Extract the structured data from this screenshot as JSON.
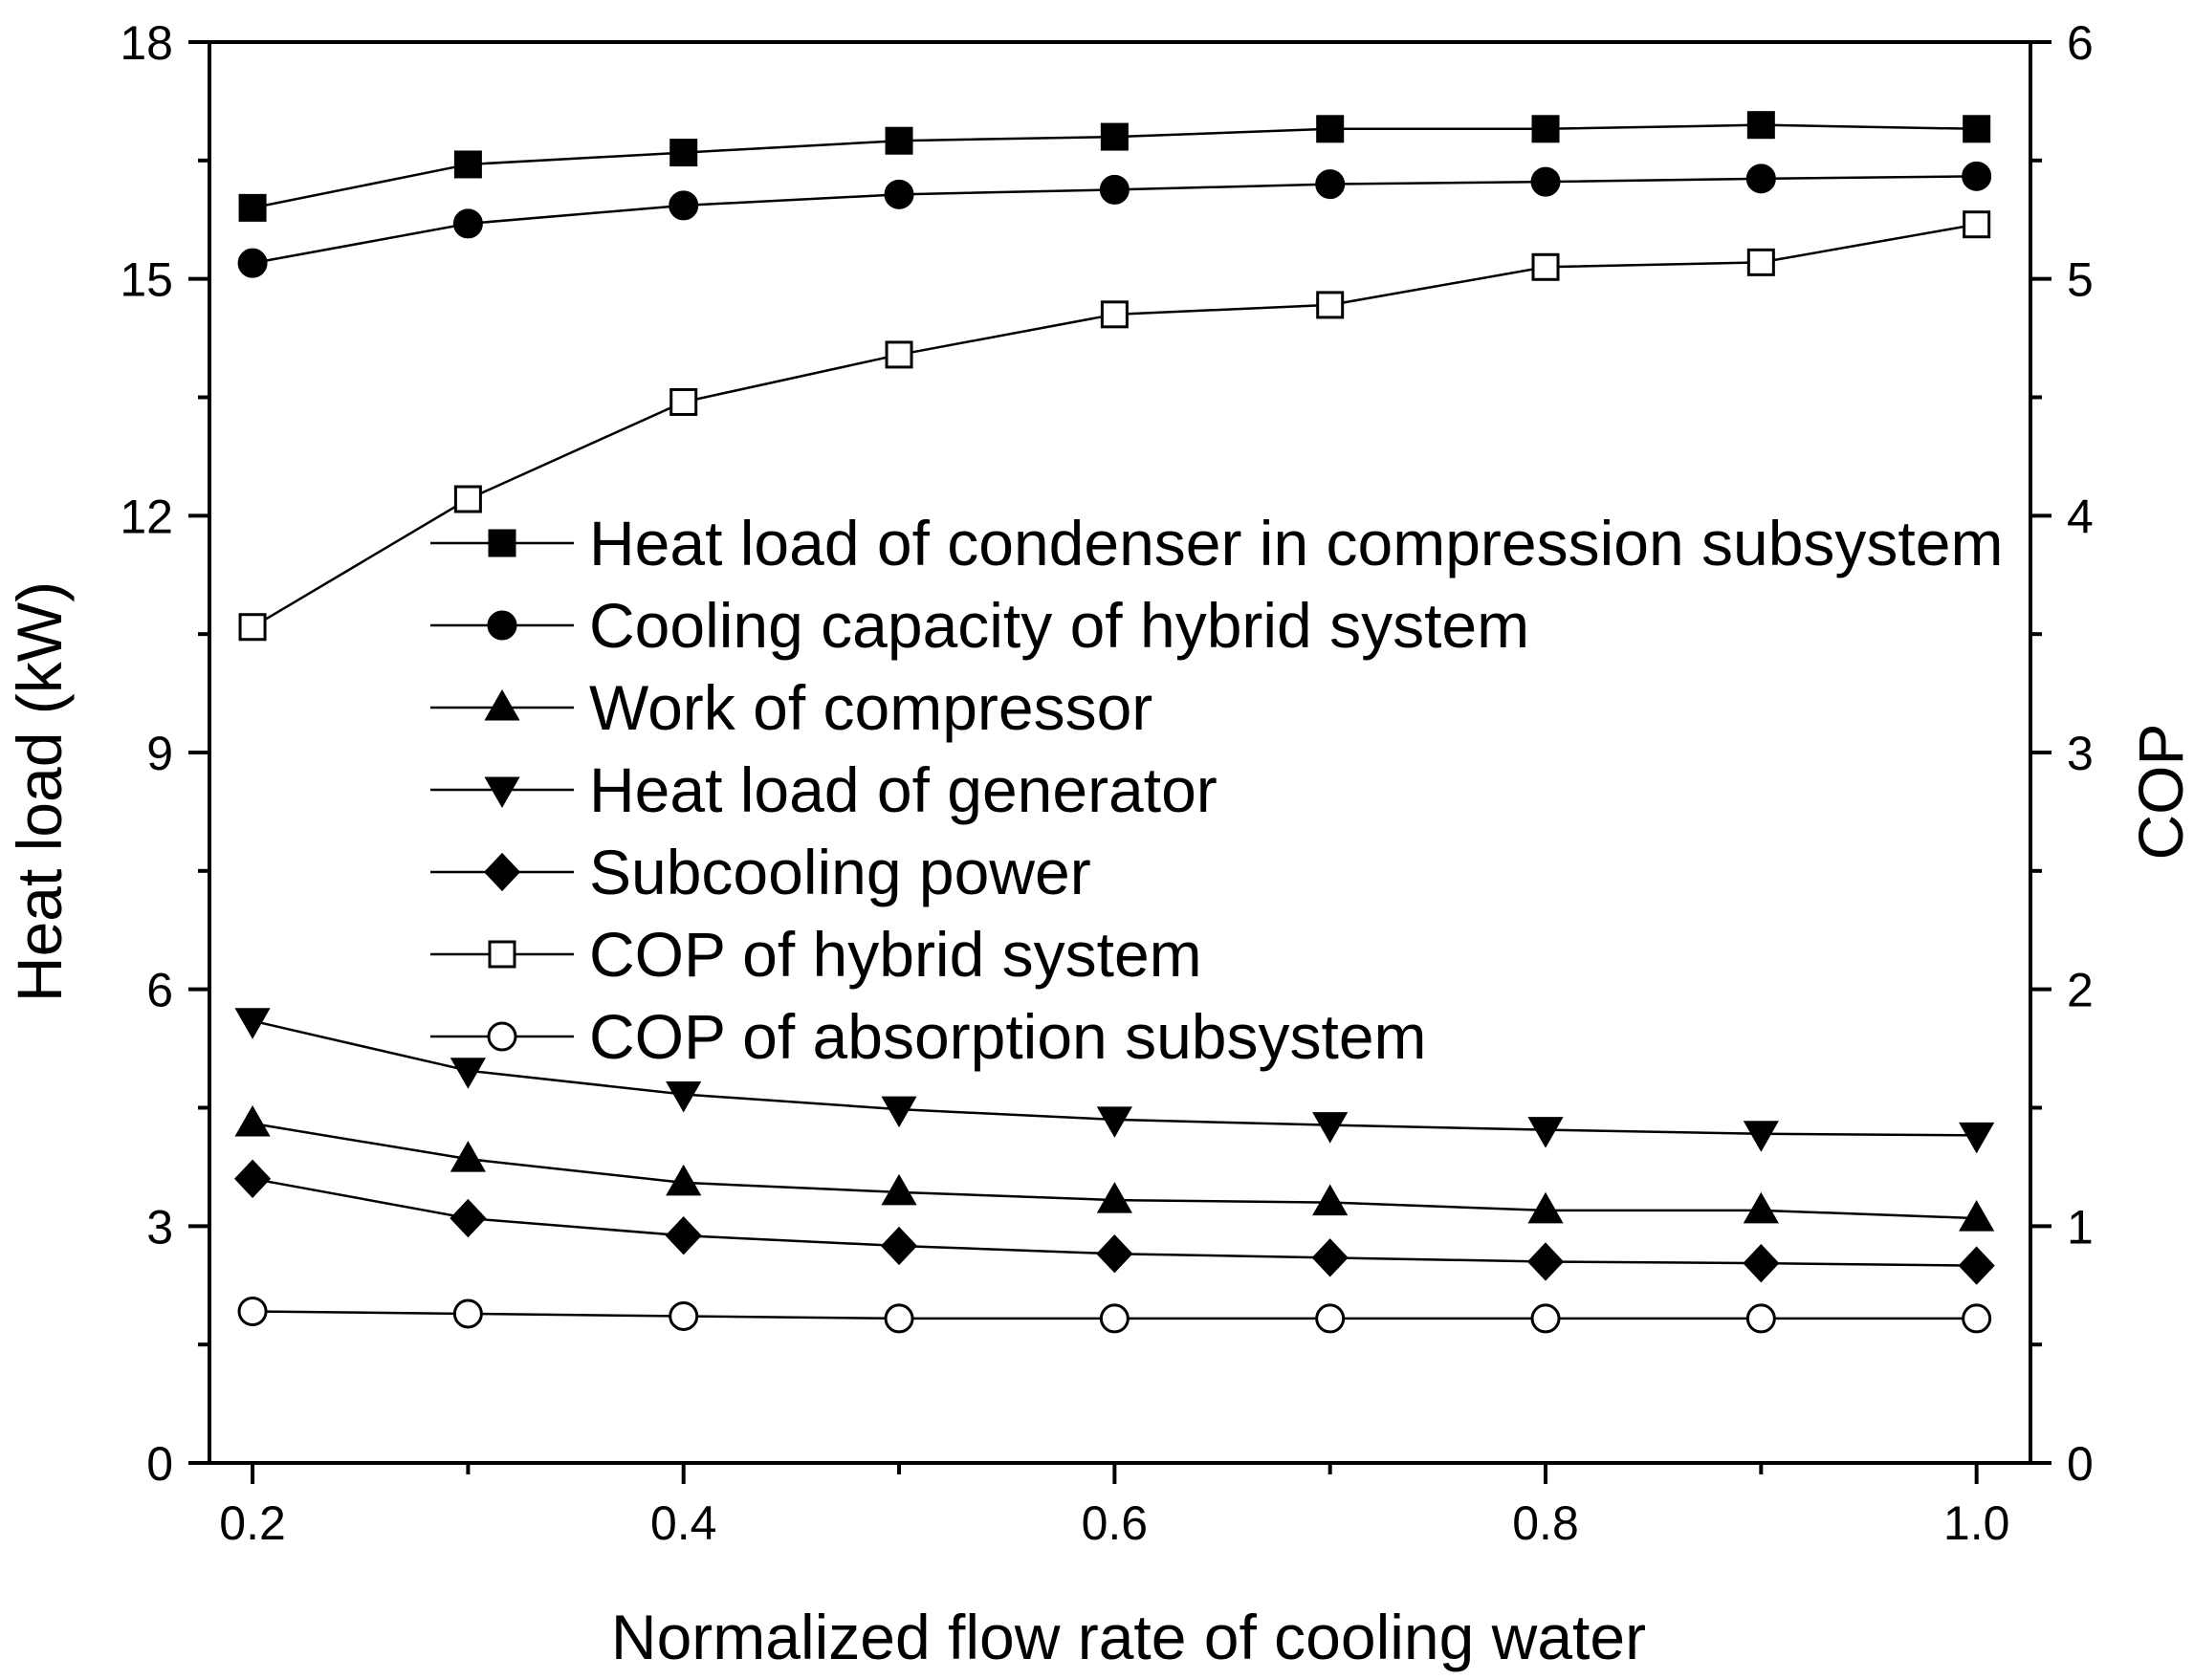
{
  "chart_data": {
    "type": "line",
    "title": "",
    "xlabel": "Normalized flow rate of cooling water",
    "ylabel_left": "Heat load (kW)",
    "ylabel_right": "COP",
    "xlim": [
      0.18,
      1.025
    ],
    "ylim_left": [
      0,
      18
    ],
    "ylim_right": [
      0,
      6
    ],
    "x": [
      0.2,
      0.3,
      0.4,
      0.5,
      0.6,
      0.7,
      0.8,
      0.9,
      1.0
    ],
    "x_ticks": [
      "0.2",
      "0.4",
      "0.6",
      "0.8",
      "1.0"
    ],
    "y_left_ticks": [
      "0",
      "3",
      "6",
      "9",
      "12",
      "15",
      "18"
    ],
    "y_right_ticks": [
      "0",
      "1",
      "2",
      "3",
      "4",
      "5",
      "6"
    ],
    "legend_position": "center",
    "series": [
      {
        "name": "Heat load of condenser in compression subsystem",
        "axis": "left",
        "marker": "square-filled",
        "values": [
          15.9,
          16.45,
          16.6,
          16.75,
          16.8,
          16.9,
          16.9,
          16.95,
          16.9
        ]
      },
      {
        "name": "Cooling capacity of hybrid system",
        "axis": "left",
        "marker": "circle-filled",
        "values": [
          15.2,
          15.7,
          15.93,
          16.07,
          16.13,
          16.2,
          16.23,
          16.27,
          16.3
        ]
      },
      {
        "name": "Work of compressor",
        "axis": "left",
        "marker": "triangle-up-filled",
        "values": [
          4.3,
          3.85,
          3.55,
          3.43,
          3.33,
          3.3,
          3.2,
          3.2,
          3.1
        ]
      },
      {
        "name": "Heat load of generator",
        "axis": "left",
        "marker": "triangle-down-filled",
        "values": [
          5.6,
          4.97,
          4.67,
          4.48,
          4.35,
          4.28,
          4.22,
          4.17,
          4.15
        ]
      },
      {
        "name": "Subcooling power",
        "axis": "left",
        "marker": "diamond-filled",
        "values": [
          3.6,
          3.1,
          2.88,
          2.75,
          2.65,
          2.6,
          2.55,
          2.53,
          2.5
        ]
      },
      {
        "name": "COP of hybrid system",
        "axis": "right",
        "marker": "square-open",
        "values": [
          3.53,
          4.07,
          4.48,
          4.68,
          4.85,
          4.89,
          5.05,
          5.07,
          5.23
        ]
      },
      {
        "name": "COP of absorption subsystem",
        "axis": "right",
        "marker": "circle-open",
        "values": [
          0.64,
          0.63,
          0.62,
          0.61,
          0.61,
          0.61,
          0.61,
          0.61,
          0.61
        ]
      }
    ]
  }
}
